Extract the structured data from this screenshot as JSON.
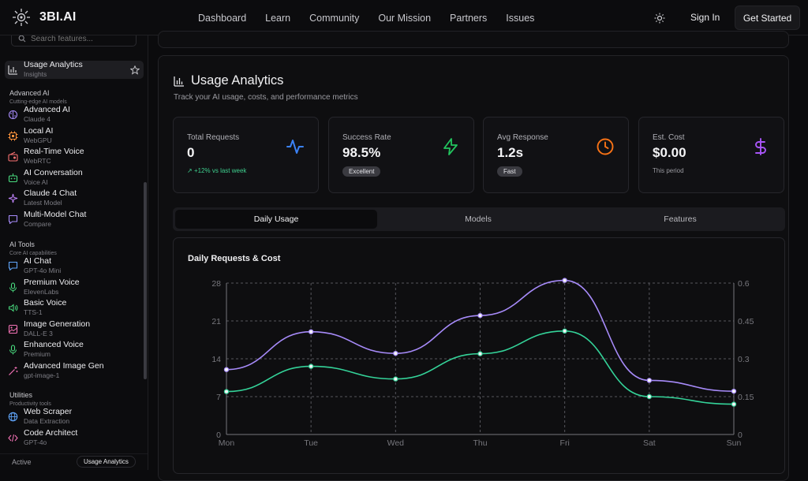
{
  "topbar": {
    "brand": "3BI.AI",
    "nav": [
      "Dashboard",
      "Learn",
      "Community",
      "Our Mission",
      "Partners",
      "Issues"
    ],
    "sign_in": "Sign In",
    "get_started": "Get Started"
  },
  "sidebar": {
    "search_placeholder": "Search features...",
    "active": {
      "label": "Usage Analytics",
      "sub": "Insights",
      "icon": "bar-chart-icon"
    },
    "sections": [
      {
        "title": "Advanced AI",
        "subtitle": "Cutting-edge AI models",
        "items": [
          {
            "label": "Advanced AI",
            "sub": "Claude 4",
            "icon": "brain-icon",
            "color": "#a78bfa"
          },
          {
            "label": "Local AI",
            "sub": "WebGPU",
            "icon": "cpu-icon",
            "color": "#fb923c"
          },
          {
            "label": "Real-Time Voice",
            "sub": "WebRTC",
            "icon": "radio-icon",
            "color": "#f87171"
          },
          {
            "label": "AI Conversation",
            "sub": "Voice AI",
            "icon": "bot-icon",
            "color": "#4ade80"
          },
          {
            "label": "Claude 4 Chat",
            "sub": "Latest Model",
            "icon": "sparkles-icon",
            "color": "#c084fc"
          },
          {
            "label": "Multi-Model Chat",
            "sub": "Compare",
            "icon": "message-square-icon",
            "color": "#a78bfa"
          }
        ]
      },
      {
        "title": "AI Tools",
        "subtitle": "Core AI capabilities",
        "items": [
          {
            "label": "AI Chat",
            "sub": "GPT-4o Mini",
            "icon": "message-icon",
            "color": "#60a5fa"
          },
          {
            "label": "Premium Voice",
            "sub": "ElevenLabs",
            "icon": "mic-icon",
            "color": "#4ade80"
          },
          {
            "label": "Basic Voice",
            "sub": "TTS-1",
            "icon": "volume-icon",
            "color": "#4ade80"
          },
          {
            "label": "Image Generation",
            "sub": "DALL-E 3",
            "icon": "image-icon",
            "color": "#f472b6"
          },
          {
            "label": "Enhanced Voice",
            "sub": "Premium",
            "icon": "mic-icon",
            "color": "#4ade80"
          },
          {
            "label": "Advanced Image Gen",
            "sub": "gpt-image-1",
            "icon": "wand-icon",
            "color": "#f472b6"
          }
        ]
      },
      {
        "title": "Utilities",
        "subtitle": "Productivity tools",
        "items": [
          {
            "label": "Web Scraper",
            "sub": "Data Extraction",
            "icon": "globe-icon",
            "color": "#60a5fa"
          },
          {
            "label": "Code Architect",
            "sub": "GPT-4o",
            "icon": "code-icon",
            "color": "#f472b6"
          }
        ]
      }
    ],
    "footer": {
      "label": "Active",
      "pill": "Usage Analytics"
    }
  },
  "main": {
    "title": "Usage Analytics",
    "subtitle": "Track your AI usage, costs, and performance metrics",
    "stats": [
      {
        "label": "Total Requests",
        "value": "0",
        "sub": "+12% vs last week",
        "icon": "activity-icon",
        "color": "#3b82f6"
      },
      {
        "label": "Success Rate",
        "value": "98.5%",
        "badge": "Excellent",
        "icon": "zap-icon",
        "color": "#22c55e"
      },
      {
        "label": "Avg Response",
        "value": "1.2s",
        "badge": "Fast",
        "icon": "clock-icon",
        "color": "#f97316"
      },
      {
        "label": "Est. Cost",
        "value": "$0.00",
        "sub": "This period",
        "icon": "dollar-icon",
        "color": "#a855f7"
      }
    ],
    "tabs": [
      "Daily Usage",
      "Models",
      "Features"
    ],
    "active_tab": 0
  },
  "chart_data": {
    "type": "line",
    "title": "Daily Requests & Cost",
    "categories": [
      "Mon",
      "Tue",
      "Wed",
      "Thu",
      "Fri",
      "Sat",
      "Sun"
    ],
    "series": [
      {
        "values": [
          12,
          19,
          15,
          22,
          28.5,
          10,
          8
        ],
        "axis": "left",
        "color": "#a78bfa"
      },
      {
        "values": [
          0.17,
          0.27,
          0.22,
          0.32,
          0.41,
          0.15,
          0.12
        ],
        "axis": "right",
        "color": "#34d399"
      }
    ],
    "y_left": {
      "ticks": [
        "0",
        "7",
        "14",
        "21",
        "28"
      ],
      "lim": [
        0,
        28
      ]
    },
    "y_right": {
      "ticks": [
        "0",
        "0.15",
        "0.3",
        "0.45",
        "0.6"
      ],
      "lim": [
        0,
        0.6
      ]
    },
    "grid": true
  }
}
